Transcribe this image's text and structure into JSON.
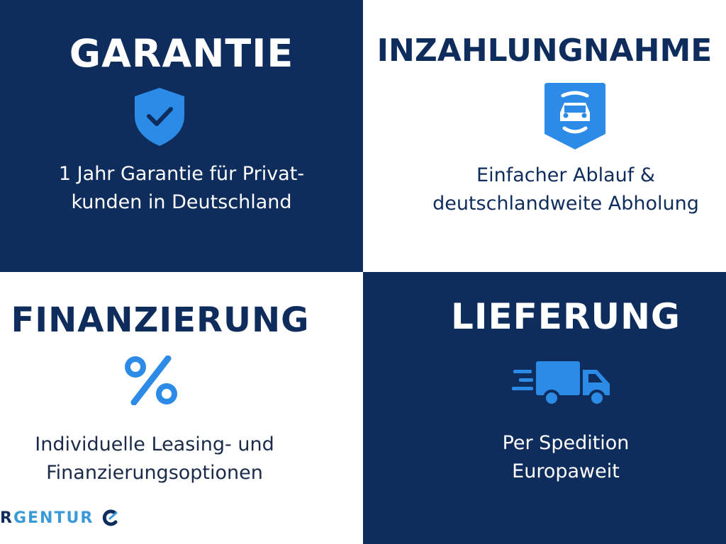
{
  "colors": {
    "navy": "#0f2d5c",
    "accent": "#2b8be6",
    "white": "#ffffff"
  },
  "panels": [
    {
      "title": "GARANTIE",
      "icon": "shield-check-icon",
      "lines": [
        "1 Jahr Garantie für Privat-",
        "kunden in Deutschland"
      ]
    },
    {
      "title": "INZAHLUNGNAHME",
      "icon": "car-badge-icon",
      "lines": [
        "Einfacher Ablauf &",
        "deutschlandweite Abholung"
      ]
    },
    {
      "title": "FINANZIERUNG",
      "icon": "percent-icon",
      "lines": [
        "Individuelle Leasing- und",
        "Finanzierungsoptionen"
      ]
    },
    {
      "title": "LIEFERUNG",
      "icon": "truck-icon",
      "lines": [
        "Per Spedition",
        "Europaweit"
      ]
    }
  ],
  "logo": {
    "first": "R",
    "rest": "GENTUR"
  }
}
